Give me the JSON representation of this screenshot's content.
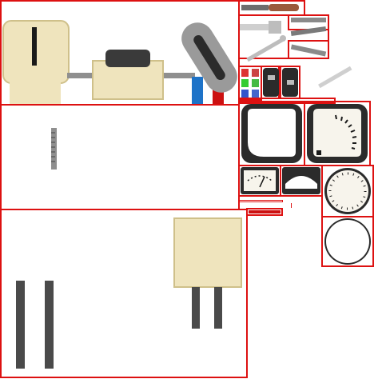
{
  "atlas": {
    "colors": {
      "outline": "#dd1111",
      "cream": "#efe4bd",
      "cream_shadow": "#d8c98e",
      "dark": "#2b2b2b",
      "steel": "#9a9a9a",
      "blue": "#1e73c8",
      "red": "#cc1111",
      "dial_face": "#f7f4ec"
    },
    "regions": [
      {
        "name": "toggle-switch-assembly",
        "icon": "toggle-switch-icon"
      },
      {
        "name": "shaft-slider-panel",
        "icon": "slider-rod-icon"
      },
      {
        "name": "stand-panel",
        "icon": "stand-legs-icon"
      },
      {
        "name": "tool-strips",
        "icon": "screwdriver-icon"
      },
      {
        "name": "indicator-lamps",
        "icon": "lamp-grid-icon"
      },
      {
        "name": "meters",
        "icon": "gauge-icon"
      }
    ]
  }
}
